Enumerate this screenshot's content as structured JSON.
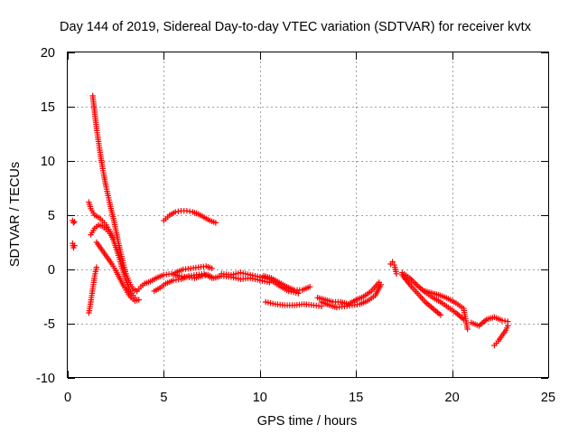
{
  "chart_data": {
    "type": "scatter",
    "title": "Day 144 of 2019, Sidereal Day-to-day VTEC variation (SDTVAR) for receiver kvtx",
    "xlabel": "GPS time / hours",
    "ylabel": "SDTVAR / TECUs",
    "xlim": [
      0,
      25
    ],
    "ylim": [
      -10,
      20
    ],
    "xticks": [
      0,
      5,
      10,
      15,
      20,
      25
    ],
    "yticks": [
      -10,
      -5,
      0,
      5,
      10,
      15,
      20
    ],
    "grid": true,
    "marker": "+",
    "series": [
      {
        "name": "SDTVAR",
        "color": "#ff0000",
        "segments": [
          {
            "x": [
              0.25,
              0.3,
              0.35
            ],
            "y": [
              4.5,
              4.3,
              4.4
            ]
          },
          {
            "x": [
              0.25,
              0.3,
              0.35
            ],
            "y": [
              2.4,
              2.0,
              2.2
            ]
          },
          {
            "x": [
              1.1,
              1.2,
              1.3,
              1.4,
              1.5
            ],
            "y": [
              -4.0,
              -3.0,
              -1.8,
              -0.6,
              0.2
            ]
          },
          {
            "x": [
              1.3,
              1.4,
              1.5,
              1.6,
              1.7,
              1.8,
              1.9,
              2.0,
              2.2,
              2.4,
              2.6,
              2.8,
              3.0,
              3.2,
              3.4,
              3.6
            ],
            "y": [
              16.0,
              14.5,
              13.0,
              11.8,
              10.6,
              9.5,
              8.5,
              7.6,
              6.0,
              4.5,
              2.8,
              1.2,
              -0.2,
              -1.2,
              -1.8,
              -2.0
            ]
          },
          {
            "x": [
              1.1,
              1.2,
              1.4,
              1.6,
              1.8,
              2.0,
              2.2,
              2.4,
              2.6,
              2.8,
              3.0,
              3.2,
              3.4,
              3.5
            ],
            "y": [
              6.2,
              5.6,
              5.0,
              4.8,
              4.5,
              4.1,
              3.5,
              2.6,
              1.5,
              0.3,
              -0.8,
              -1.8,
              -2.4,
              -2.6
            ]
          },
          {
            "x": [
              1.2,
              1.4,
              1.6,
              1.8,
              2.0,
              2.2,
              2.4
            ],
            "y": [
              3.2,
              3.8,
              4.1,
              4.0,
              3.7,
              3.3,
              2.8
            ]
          },
          {
            "x": [
              1.5,
              1.7,
              1.9,
              2.1,
              2.3,
              2.5,
              2.7,
              2.9,
              3.1,
              3.3,
              3.5,
              3.7
            ],
            "y": [
              2.5,
              2.0,
              1.5,
              1.0,
              0.5,
              -0.1,
              -0.8,
              -1.5,
              -2.1,
              -2.6,
              -2.9,
              -2.8
            ]
          },
          {
            "x": [
              3.6,
              3.8,
              4.0,
              4.3,
              4.6,
              5.0,
              5.4,
              5.8,
              6.2,
              6.6,
              7.0,
              7.3,
              7.6,
              8.0,
              8.5,
              9.0,
              9.5,
              10.0,
              10.5
            ],
            "y": [
              -2.0,
              -1.6,
              -1.3,
              -1.1,
              -0.8,
              -0.5,
              -0.4,
              -0.6,
              -0.7,
              -0.8,
              -0.6,
              -0.5,
              -0.8,
              -0.6,
              -0.7,
              -0.9,
              -0.8,
              -1.0,
              -1.2
            ]
          },
          {
            "x": [
              4.5,
              4.8,
              5.1,
              5.5,
              5.9,
              6.3,
              6.7,
              7.1,
              7.5
            ],
            "y": [
              -2.0,
              -1.7,
              -1.3,
              -1.0,
              -0.9,
              -0.6,
              -0.5,
              -0.4,
              -0.8
            ]
          },
          {
            "x": [
              5.6,
              6.0,
              6.4,
              6.8,
              7.2,
              7.5
            ],
            "y": [
              -0.3,
              0.0,
              0.1,
              0.2,
              0.3,
              0.1
            ]
          },
          {
            "x": [
              5.0,
              5.3,
              5.6,
              5.9,
              6.2,
              6.5,
              6.8,
              7.1,
              7.4,
              7.7
            ],
            "y": [
              4.5,
              5.0,
              5.3,
              5.4,
              5.4,
              5.3,
              5.1,
              4.8,
              4.5,
              4.3
            ]
          },
          {
            "x": [
              8.0,
              8.5,
              9.0,
              9.5,
              10.0,
              10.5,
              11.0,
              11.5,
              12.0
            ],
            "y": [
              -0.4,
              -0.5,
              -0.3,
              -0.5,
              -0.7,
              -0.9,
              -1.5,
              -2.0,
              -2.2
            ]
          },
          {
            "x": [
              10.2,
              10.6,
              11.0,
              11.4,
              11.8,
              12.2,
              12.6
            ],
            "y": [
              -0.6,
              -0.8,
              -1.2,
              -1.6,
              -1.9,
              -1.9,
              -1.6
            ]
          },
          {
            "x": [
              10.3,
              10.8,
              11.3,
              11.8,
              12.3,
              12.8,
              13.2
            ],
            "y": [
              -3.0,
              -3.2,
              -3.3,
              -3.3,
              -3.2,
              -3.3,
              -3.4
            ]
          },
          {
            "x": [
              13.0,
              13.4,
              13.8,
              14.2,
              14.6,
              15.0,
              15.4,
              15.8,
              16.2
            ],
            "y": [
              -2.6,
              -2.8,
              -3.0,
              -3.0,
              -3.2,
              -2.8,
              -2.5,
              -2.0,
              -1.2
            ]
          },
          {
            "x": [
              13.2,
              13.6,
              14.0,
              14.4,
              14.8,
              15.2,
              15.6,
              16.0,
              16.3
            ],
            "y": [
              -3.0,
              -3.3,
              -3.5,
              -3.4,
              -3.3,
              -3.2,
              -2.9,
              -2.4,
              -1.4
            ]
          },
          {
            "x": [
              16.8,
              16.9,
              17.0,
              17.1
            ],
            "y": [
              0.5,
              0.7,
              0.4,
              -0.4
            ]
          },
          {
            "x": [
              17.4,
              17.8,
              18.2,
              18.6,
              19.0,
              19.4,
              19.8,
              20.2,
              20.6
            ],
            "y": [
              -0.3,
              -0.8,
              -1.5,
              -2.1,
              -2.6,
              -3.0,
              -3.5,
              -4.0,
              -4.6
            ]
          },
          {
            "x": [
              17.4,
              17.8,
              18.2,
              18.6,
              19.0,
              19.4
            ],
            "y": [
              -0.5,
              -1.4,
              -2.2,
              -3.0,
              -3.6,
              -4.2
            ]
          },
          {
            "x": [
              18.6,
              19.0,
              19.4,
              19.8,
              20.2,
              20.6,
              20.8
            ],
            "y": [
              -2.0,
              -2.2,
              -2.4,
              -2.7,
              -3.1,
              -3.6,
              -5.5
            ]
          },
          {
            "x": [
              21.0,
              21.4,
              21.8,
              22.2,
              22.6,
              22.9
            ],
            "y": [
              -4.9,
              -5.2,
              -4.6,
              -4.4,
              -4.7,
              -4.8
            ]
          },
          {
            "x": [
              22.2,
              22.4,
              22.6,
              22.8,
              22.9
            ],
            "y": [
              -7.0,
              -6.6,
              -6.1,
              -5.6,
              -5.2
            ]
          }
        ]
      }
    ]
  }
}
